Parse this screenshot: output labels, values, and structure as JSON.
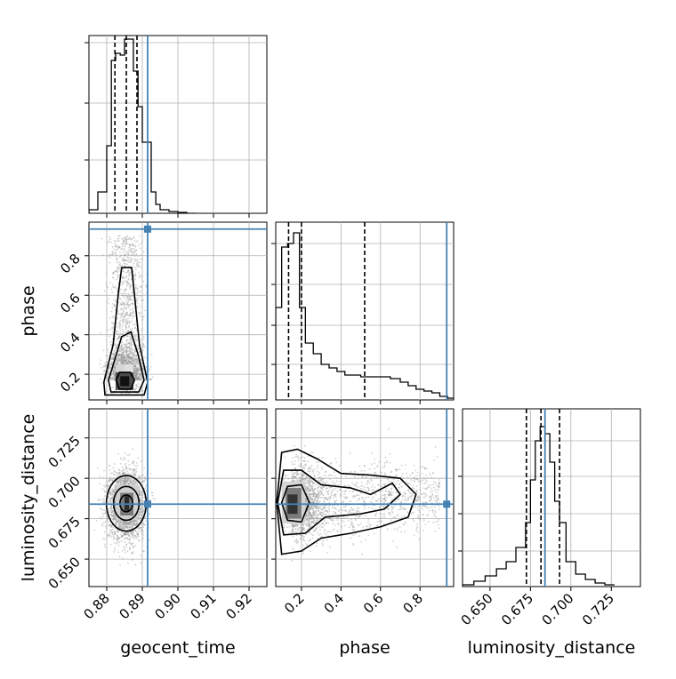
{
  "colors": {
    "truth": "#4682b4",
    "hist": "#000000",
    "grid": "#b0b0b0",
    "points": "#9a9a9a"
  },
  "labels": {
    "geocent_time": "geocent_time",
    "phase": "phase",
    "luminosity_distance": "luminosity_distance"
  },
  "chart_data": {
    "type": "corner",
    "parameters": [
      "geocent_time",
      "phase",
      "luminosity_distance"
    ],
    "truths": {
      "geocent_time": 0.8915,
      "phase": 0.935,
      "luminosity_distance": 0.684
    },
    "quantiles": {
      "geocent_time": [
        0.8823,
        0.8855,
        0.8885
      ],
      "phase": [
        0.135,
        0.2,
        0.52
      ],
      "luminosity_distance": [
        0.6725,
        0.6815,
        0.693
      ]
    },
    "axes": {
      "geocent_time": {
        "range": [
          0.875,
          0.925
        ],
        "ticks": [
          0.88,
          0.89,
          0.9,
          0.91,
          0.92
        ],
        "tick_labels": [
          "0.88",
          "0.89",
          "0.90",
          "0.91",
          "0.92"
        ]
      },
      "phase": {
        "range": [
          0.07,
          0.97
        ],
        "ticks": [
          0.2,
          0.4,
          0.6,
          0.8
        ],
        "tick_labels": [
          "0.2",
          "0.4",
          "0.6",
          "0.8"
        ]
      },
      "luminosity_distance": {
        "range": [
          0.633,
          0.743
        ],
        "ticks": [
          0.65,
          0.675,
          0.7,
          0.725
        ],
        "tick_labels": [
          "0.650",
          "0.675",
          "0.700",
          "0.725"
        ]
      }
    },
    "hist_1d": {
      "geocent_time": {
        "bin_edges": [
          0.875,
          0.8775,
          0.88,
          0.8813,
          0.8825,
          0.8838,
          0.885,
          0.8863,
          0.8875,
          0.8888,
          0.89,
          0.8913,
          0.8925,
          0.8938,
          0.895,
          0.8975,
          0.9,
          0.9025,
          0.905
        ],
        "counts": [
          0.02,
          0.12,
          0.38,
          0.86,
          0.9,
          0.89,
          0.98,
          0.98,
          0.8,
          0.6,
          0.4,
          0.4,
          0.12,
          0.05,
          0.02,
          0.01,
          0.005,
          0.0
        ]
      },
      "phase": {
        "bin_edges": [
          0.07,
          0.1,
          0.13,
          0.16,
          0.19,
          0.22,
          0.26,
          0.3,
          0.34,
          0.38,
          0.42,
          0.46,
          0.5,
          0.55,
          0.6,
          0.65,
          0.7,
          0.74,
          0.78,
          0.82,
          0.86,
          0.9,
          0.94,
          0.97
        ],
        "counts": [
          0.52,
          0.86,
          0.88,
          0.94,
          0.52,
          0.32,
          0.26,
          0.2,
          0.18,
          0.16,
          0.14,
          0.14,
          0.13,
          0.13,
          0.13,
          0.12,
          0.1,
          0.08,
          0.06,
          0.05,
          0.04,
          0.02,
          0.01
        ]
      },
      "luminosity_distance": {
        "bin_edges": [
          0.633,
          0.64,
          0.647,
          0.654,
          0.66,
          0.666,
          0.672,
          0.675,
          0.678,
          0.681,
          0.684,
          0.687,
          0.69,
          0.693,
          0.697,
          0.703,
          0.709,
          0.715,
          0.721,
          0.727
        ],
        "counts": [
          0.01,
          0.03,
          0.06,
          0.1,
          0.14,
          0.22,
          0.36,
          0.6,
          0.82,
          0.9,
          0.86,
          0.7,
          0.48,
          0.36,
          0.14,
          0.07,
          0.04,
          0.02,
          0.01
        ]
      }
    },
    "ylims_1d": {
      "geocent_time": [
        0,
        1.0
      ],
      "phase": [
        0,
        1.0
      ],
      "luminosity_distance": [
        0,
        1.0
      ]
    },
    "hist_1d_yticks": {
      "geocent_time": [
        0.3,
        0.62,
        0.96
      ],
      "phase": [
        0.2,
        0.42,
        0.65,
        0.88
      ],
      "luminosity_distance": [
        0.2,
        0.41,
        0.62,
        0.82
      ]
    },
    "scatter_samples_per_panel": 2500
  }
}
